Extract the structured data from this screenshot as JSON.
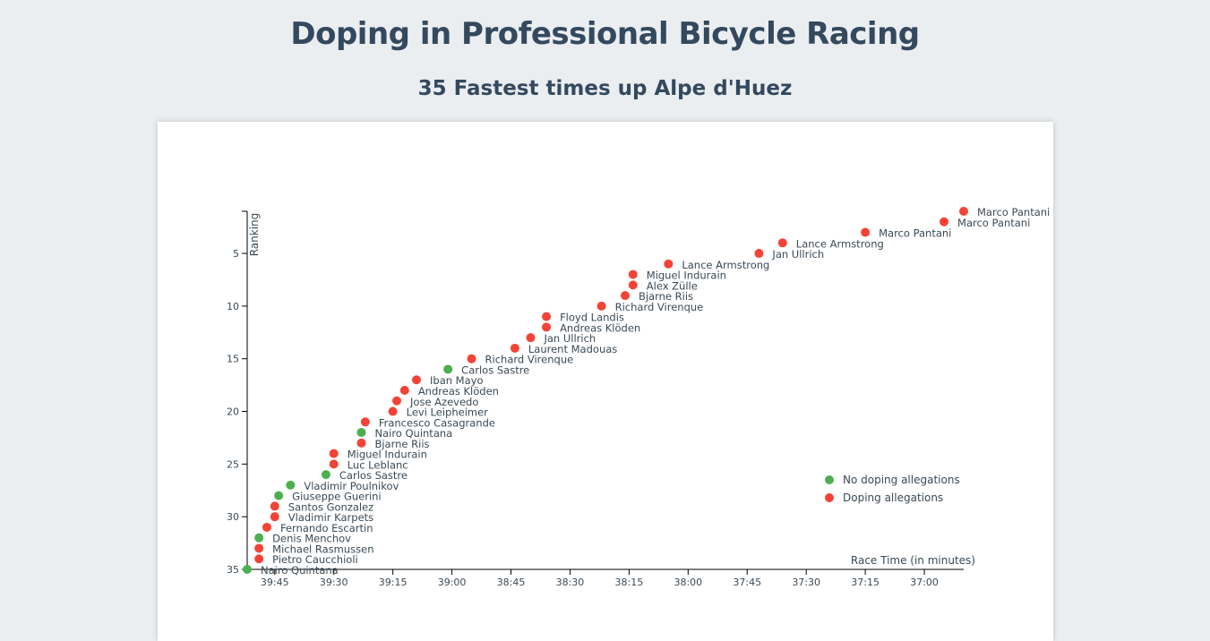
{
  "page": {
    "title": "Doping in Professional Bicycle Racing",
    "subtitle": "35 Fastest times up Alpe d'Huez"
  },
  "chart_data": {
    "type": "scatter",
    "title": "Doping in Professional Bicycle Racing",
    "subtitle": "35 Fastest times up Alpe d'Huez",
    "xlabel": "Race Time (in minutes)",
    "ylabel": "Ranking",
    "x_reversed": true,
    "y_reversed": true,
    "xlim": [
      "39:52",
      "36:50"
    ],
    "ylim": [
      1,
      35
    ],
    "x_ticks": [
      "39:45",
      "39:30",
      "39:15",
      "39:00",
      "38:45",
      "38:30",
      "38:15",
      "38:00",
      "37:45",
      "37:30",
      "37:15",
      "37:00"
    ],
    "y_ticks": [
      5,
      10,
      15,
      20,
      25,
      30,
      35
    ],
    "legend_position": "bottom-right",
    "colors": {
      "no_doping": "#4caf50",
      "doping": "#f44336"
    },
    "legend": [
      {
        "key": "no_doping",
        "label": "No doping allegations"
      },
      {
        "key": "doping",
        "label": "Doping allegations"
      }
    ],
    "points": [
      {
        "place": 1,
        "time": "36:50",
        "name": "Marco Pantani",
        "doping": true
      },
      {
        "place": 2,
        "time": "36:55",
        "name": "Marco Pantani",
        "doping": true
      },
      {
        "place": 3,
        "time": "37:15",
        "name": "Marco Pantani",
        "doping": true
      },
      {
        "place": 4,
        "time": "37:36",
        "name": "Lance Armstrong",
        "doping": true
      },
      {
        "place": 5,
        "time": "37:42",
        "name": "Jan Ullrich",
        "doping": true
      },
      {
        "place": 6,
        "time": "38:05",
        "name": "Lance Armstrong",
        "doping": true
      },
      {
        "place": 7,
        "time": "38:14",
        "name": "Miguel Indurain",
        "doping": true
      },
      {
        "place": 8,
        "time": "38:14",
        "name": "Alex Zülle",
        "doping": true
      },
      {
        "place": 9,
        "time": "38:16",
        "name": "Bjarne Riis",
        "doping": true
      },
      {
        "place": 10,
        "time": "38:22",
        "name": "Richard Virenque",
        "doping": true
      },
      {
        "place": 11,
        "time": "38:36",
        "name": "Floyd Landis",
        "doping": true
      },
      {
        "place": 12,
        "time": "38:36",
        "name": "Andreas Klöden",
        "doping": true
      },
      {
        "place": 13,
        "time": "38:40",
        "name": "Jan Ullrich",
        "doping": true
      },
      {
        "place": 14,
        "time": "38:44",
        "name": "Laurent Madouas",
        "doping": true
      },
      {
        "place": 15,
        "time": "38:55",
        "name": "Richard Virenque",
        "doping": true
      },
      {
        "place": 16,
        "time": "39:01",
        "name": "Carlos Sastre",
        "doping": false
      },
      {
        "place": 17,
        "time": "39:09",
        "name": "Iban Mayo",
        "doping": true
      },
      {
        "place": 18,
        "time": "39:12",
        "name": "Andreas Klöden",
        "doping": true
      },
      {
        "place": 19,
        "time": "39:14",
        "name": "Jose Azevedo",
        "doping": true
      },
      {
        "place": 20,
        "time": "39:15",
        "name": "Levi Leipheimer",
        "doping": true
      },
      {
        "place": 21,
        "time": "39:22",
        "name": "Francesco Casagrande",
        "doping": true
      },
      {
        "place": 22,
        "time": "39:23",
        "name": "Nairo Quintana",
        "doping": false
      },
      {
        "place": 23,
        "time": "39:23",
        "name": "Bjarne Riis",
        "doping": true
      },
      {
        "place": 24,
        "time": "39:30",
        "name": "Miguel Indurain",
        "doping": true
      },
      {
        "place": 25,
        "time": "39:30",
        "name": "Luc Leblanc",
        "doping": true
      },
      {
        "place": 26,
        "time": "39:32",
        "name": "Carlos Sastre",
        "doping": false
      },
      {
        "place": 27,
        "time": "39:41",
        "name": "Vladimir Poulnikov",
        "doping": false
      },
      {
        "place": 28,
        "time": "39:44",
        "name": "Giuseppe Guerini",
        "doping": false
      },
      {
        "place": 29,
        "time": "39:45",
        "name": "Santos Gonzalez",
        "doping": true
      },
      {
        "place": 30,
        "time": "39:45",
        "name": "Vladimir Karpets",
        "doping": true
      },
      {
        "place": 31,
        "time": "39:47",
        "name": "Fernando Escartin",
        "doping": true
      },
      {
        "place": 32,
        "time": "39:49",
        "name": "Denis Menchov",
        "doping": false
      },
      {
        "place": 33,
        "time": "39:49",
        "name": "Michael Rasmussen",
        "doping": true
      },
      {
        "place": 34,
        "time": "39:49",
        "name": "Pietro Caucchioli",
        "doping": true
      },
      {
        "place": 35,
        "time": "39:52",
        "name": "Nairo Quintana",
        "doping": false
      }
    ]
  }
}
